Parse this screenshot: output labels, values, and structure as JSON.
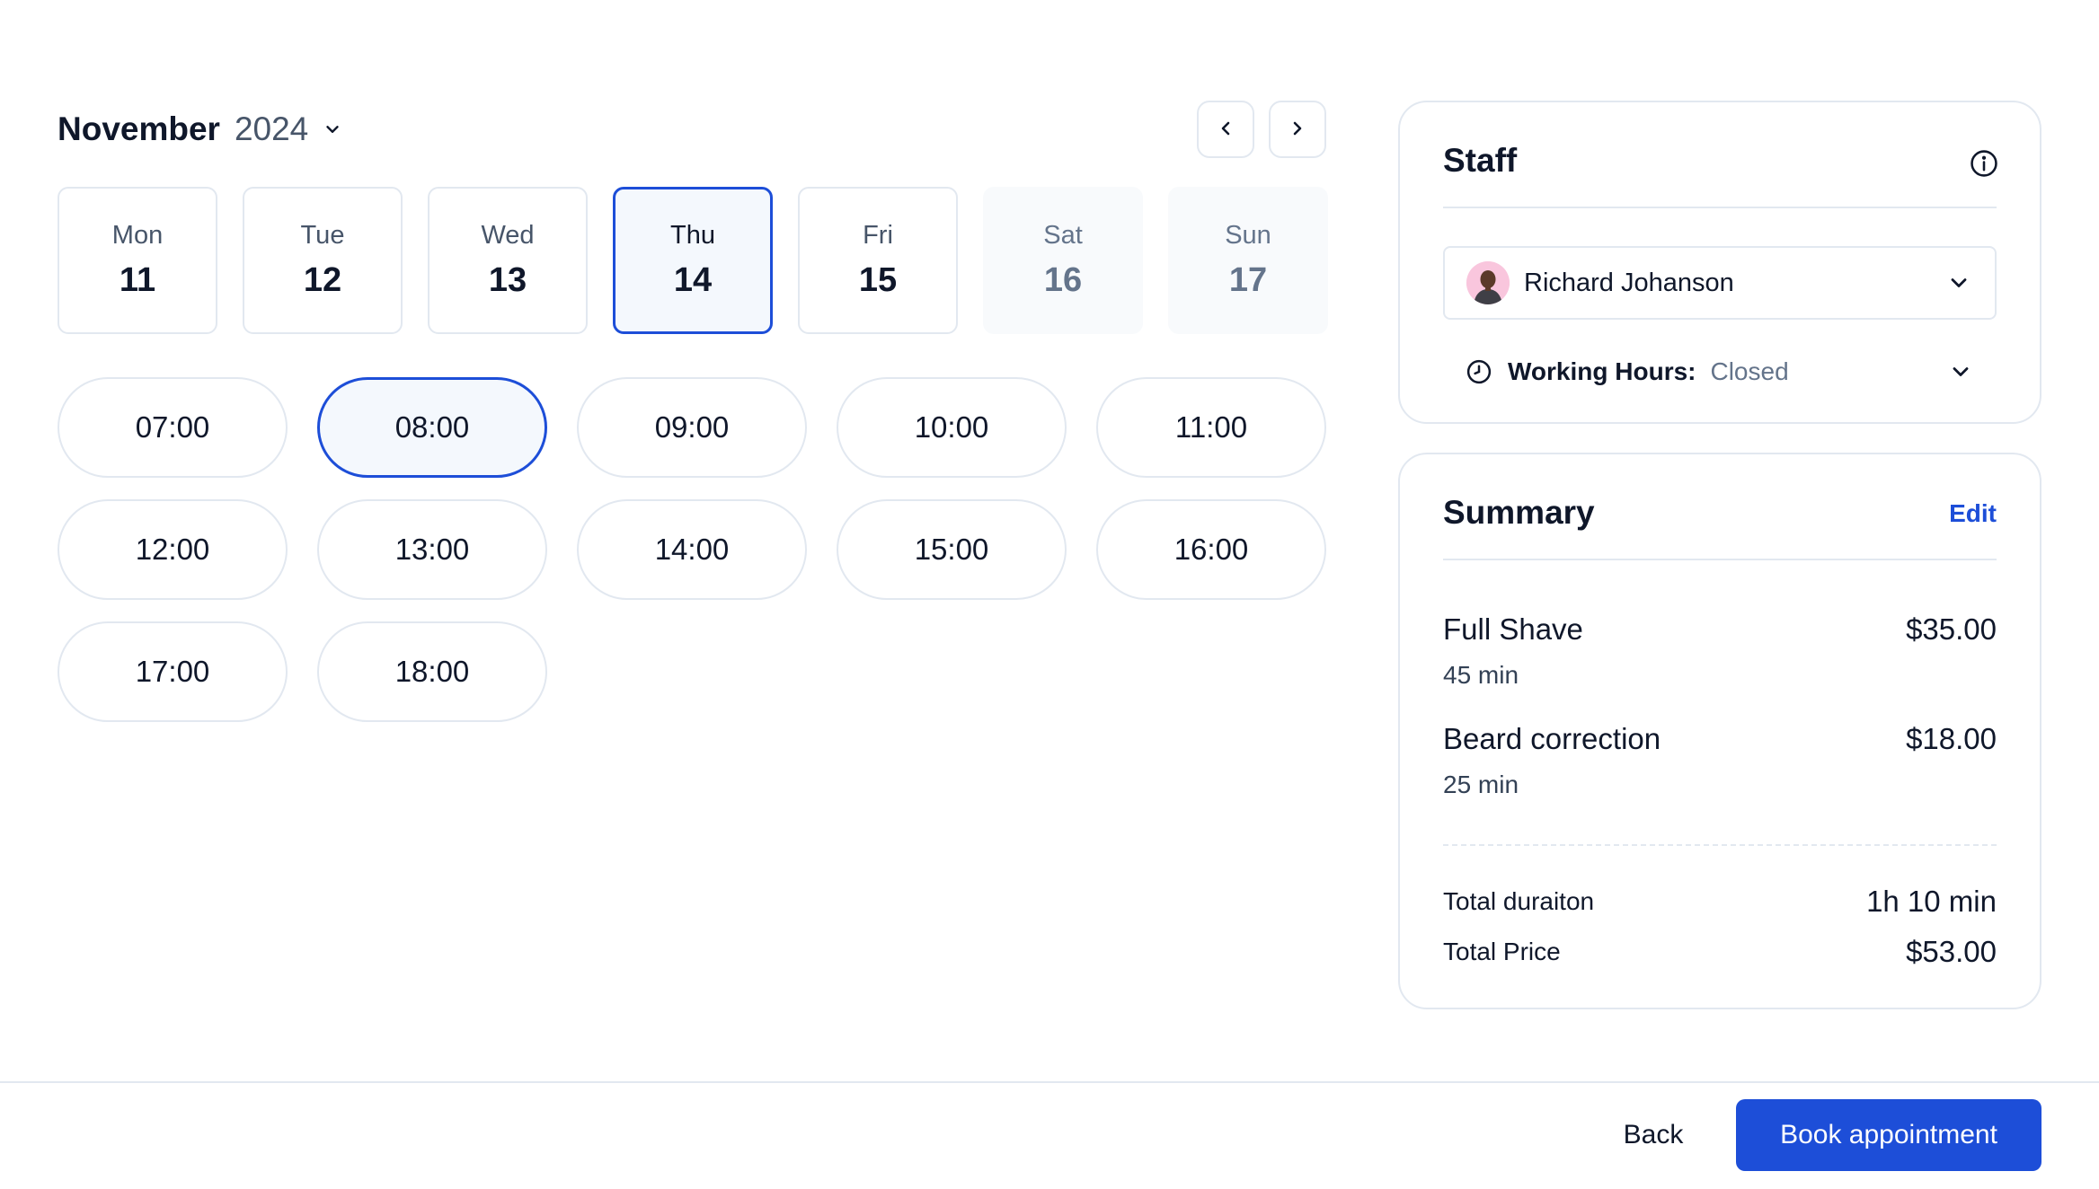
{
  "calendar": {
    "month": "November",
    "year": "2024",
    "days": [
      {
        "name": "Mon",
        "date": "11",
        "state": "default"
      },
      {
        "name": "Tue",
        "date": "12",
        "state": "default"
      },
      {
        "name": "Wed",
        "date": "13",
        "state": "default"
      },
      {
        "name": "Thu",
        "date": "14",
        "state": "selected"
      },
      {
        "name": "Fri",
        "date": "15",
        "state": "default"
      },
      {
        "name": "Sat",
        "date": "16",
        "state": "disabled"
      },
      {
        "name": "Sun",
        "date": "17",
        "state": "disabled"
      }
    ],
    "time_slots": [
      "07:00",
      "08:00",
      "09:00",
      "10:00",
      "11:00",
      "12:00",
      "13:00",
      "14:00",
      "15:00",
      "16:00",
      "17:00",
      "18:00"
    ],
    "selected_slot": "08:00"
  },
  "staff": {
    "title": "Staff",
    "selected_name": "Richard Johanson",
    "working_hours_label": "Working Hours:",
    "working_hours_value": "Closed"
  },
  "summary": {
    "title": "Summary",
    "edit_label": "Edit",
    "services": [
      {
        "name": "Full Shave",
        "price": "$35.00",
        "duration": "45 min"
      },
      {
        "name": "Beard correction",
        "price": "$18.00",
        "duration": "25 min"
      }
    ],
    "total_duration_label": "Total duraiton",
    "total_duration_value": "1h 10 min",
    "total_price_label": "Total Price",
    "total_price_value": "$53.00"
  },
  "footer": {
    "back_label": "Back",
    "book_label": "Book appointment"
  },
  "colors": {
    "accent": "#1d4ed8",
    "border": "#e2e8f0",
    "selected_bg": "#f4f8fd",
    "text": "#0f172a",
    "muted": "#64748b"
  },
  "icons": {
    "month_dropdown": "chevron-down-icon",
    "prev": "chevron-left-icon",
    "next": "chevron-right-icon",
    "info": "info-icon",
    "staff_dropdown": "chevron-down-icon",
    "clock": "clock-icon"
  }
}
